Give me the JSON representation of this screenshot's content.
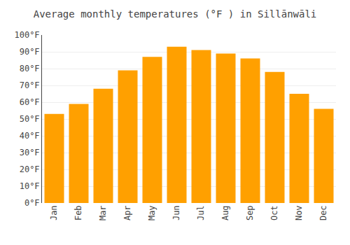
{
  "chart_data": {
    "type": "bar",
    "title": "Average monthly temperatures (°F ) in Sillānwāli",
    "categories": [
      "Jan",
      "Feb",
      "Mar",
      "Apr",
      "May",
      "Jun",
      "Jul",
      "Aug",
      "Sep",
      "Oct",
      "Nov",
      "Dec"
    ],
    "values": [
      53,
      59,
      68,
      79,
      87,
      93,
      91,
      89,
      86,
      78,
      65,
      56
    ],
    "color": "#FFA000",
    "ylim": [
      0,
      100
    ],
    "yticks": [
      {
        "value": 0,
        "label": "0°F"
      },
      {
        "value": 10,
        "label": "10°F"
      },
      {
        "value": 20,
        "label": "20°F"
      },
      {
        "value": 30,
        "label": "30°F"
      },
      {
        "value": 40,
        "label": "40°F"
      },
      {
        "value": 50,
        "label": "50°F"
      },
      {
        "value": 60,
        "label": "60°F"
      },
      {
        "value": 70,
        "label": "70°F"
      },
      {
        "value": 80,
        "label": "80°F"
      },
      {
        "value": 90,
        "label": "90°F"
      },
      {
        "value": 100,
        "label": "100°F"
      }
    ],
    "grid": true
  }
}
